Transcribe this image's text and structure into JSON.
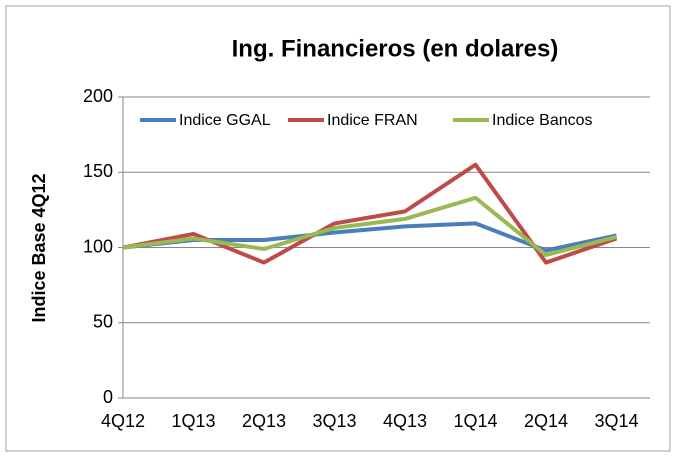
{
  "chart_data": {
    "type": "line",
    "title": "Ing. Financieros (en dolares)",
    "y_label": "Indice Base 4Q12",
    "categories": [
      "4Q12",
      "1Q13",
      "2Q13",
      "3Q13",
      "4Q13",
      "1Q14",
      "2Q14",
      "3Q14"
    ],
    "series": [
      {
        "name": "Indice GGAL",
        "color": "#4a7ebb",
        "values": [
          100,
          105,
          105,
          110,
          114,
          116,
          98,
          108
        ]
      },
      {
        "name": "Indice FRAN",
        "color": "#be4b48",
        "values": [
          100,
          109,
          90,
          116,
          124,
          155,
          90,
          106
        ]
      },
      {
        "name": "Indice Bancos",
        "color": "#98b954",
        "values": [
          100,
          106,
          99,
          113,
          119,
          133,
          95,
          107
        ]
      }
    ],
    "ylim": [
      0,
      200
    ],
    "yticks": [
      0,
      50,
      100,
      150,
      200
    ],
    "grid": true,
    "legend": "top"
  }
}
